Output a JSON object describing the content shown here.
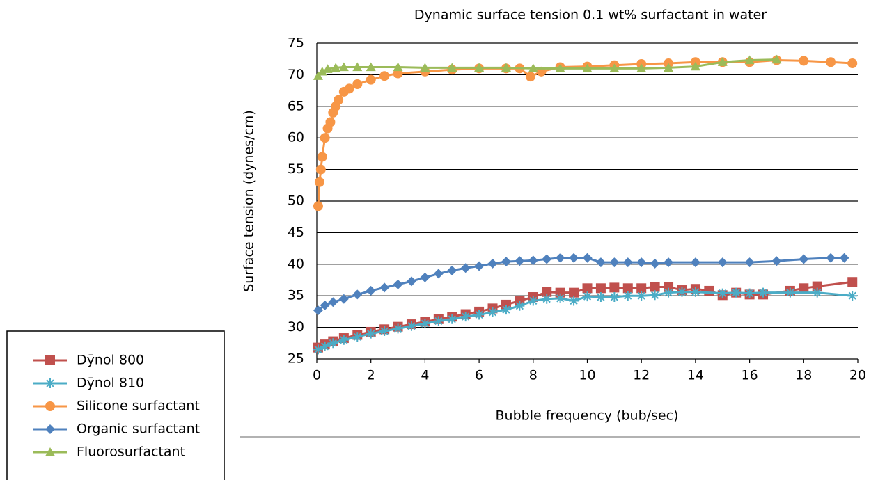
{
  "chart_data": {
    "type": "line",
    "title": "Dynamic surface tension 0.1 wt% surfactant in water",
    "x_label": "Bubble frequency (bub/sec)",
    "y_label": "Surface tension (dynes/cm)",
    "xlim": [
      0,
      20
    ],
    "xticks": [
      0,
      2,
      4,
      6,
      8,
      10,
      12,
      14,
      16,
      18,
      20
    ],
    "ylim": [
      25,
      75
    ],
    "yticks": [
      25,
      30,
      35,
      40,
      45,
      50,
      55,
      60,
      65,
      70,
      75
    ],
    "grid": true,
    "legend": "bottom-left",
    "series": [
      {
        "name": "Dȳnol 800",
        "color": "#c0504d",
        "marker": "square",
        "x": [
          0.05,
          0.3,
          0.6,
          1.0,
          1.5,
          2,
          2.5,
          3,
          3.5,
          4,
          4.5,
          5,
          5.5,
          6,
          6.5,
          7,
          7.5,
          8,
          8.5,
          9,
          9.5,
          10,
          10.5,
          11,
          11.5,
          12,
          12.5,
          13,
          13.5,
          14,
          14.5,
          15,
          15.5,
          16,
          16.5,
          17.5,
          18,
          18.5,
          19.8
        ],
        "values": [
          26.8,
          27.3,
          27.8,
          28.3,
          28.8,
          29.3,
          29.7,
          30.1,
          30.5,
          30.9,
          31.3,
          31.7,
          32.1,
          32.5,
          33.0,
          33.6,
          34.2,
          34.8,
          35.6,
          35.5,
          35.5,
          36.2,
          36.2,
          36.3,
          36.2,
          36.2,
          36.4,
          36.4,
          35.9,
          36.1,
          35.8,
          35.1,
          35.5,
          35.2,
          35.2,
          35.8,
          36.2,
          36.5,
          37.2
        ]
      },
      {
        "name": "Dȳnol 810",
        "color": "#4bacc6",
        "marker": "asterisk",
        "x": [
          0.05,
          0.3,
          0.6,
          1.0,
          1.5,
          2,
          2.5,
          3,
          3.5,
          4,
          4.5,
          5,
          5.5,
          6,
          6.5,
          7,
          7.5,
          8,
          8.5,
          9,
          9.5,
          10,
          10.5,
          11,
          11.5,
          12,
          12.5,
          13,
          13.5,
          14,
          15,
          15.5,
          16,
          16.5,
          17.5,
          18.5,
          19.8
        ],
        "values": [
          26.5,
          27.0,
          27.5,
          28.0,
          28.5,
          29.0,
          29.4,
          29.8,
          30.2,
          30.6,
          31.0,
          31.3,
          31.7,
          32.0,
          32.4,
          32.8,
          33.4,
          34.2,
          34.5,
          34.6,
          34.2,
          34.9,
          34.8,
          34.8,
          35.0,
          35.0,
          35.1,
          35.5,
          35.6,
          35.6,
          35.4,
          35.5,
          35.4,
          35.5,
          35.5,
          35.5,
          35.0
        ]
      },
      {
        "name": "Silicone surfactant",
        "color": "#f79646",
        "marker": "circle",
        "x": [
          0.05,
          0.1,
          0.15,
          0.2,
          0.3,
          0.4,
          0.5,
          0.6,
          0.7,
          0.8,
          1.0,
          1.2,
          1.5,
          2,
          2.5,
          3,
          4,
          5,
          6,
          7,
          7.5,
          7.9,
          8.3,
          9,
          10,
          11,
          12,
          13,
          14,
          15,
          16,
          17,
          18,
          19,
          19.8
        ],
        "values": [
          49.2,
          53,
          55,
          57,
          60,
          61.5,
          62.5,
          64,
          65,
          66,
          67.3,
          67.8,
          68.5,
          69.2,
          69.8,
          70.2,
          70.5,
          70.8,
          71,
          71,
          71,
          69.7,
          70.5,
          71.2,
          71.3,
          71.5,
          71.7,
          71.8,
          72,
          72,
          72,
          72.3,
          72.2,
          72,
          71.8
        ]
      },
      {
        "name": "Organic surfactant",
        "color": "#4f81bd",
        "marker": "diamond",
        "x": [
          0.05,
          0.3,
          0.6,
          1,
          1.5,
          2,
          2.5,
          3,
          3.5,
          4,
          4.5,
          5,
          5.5,
          6,
          6.5,
          7,
          7.5,
          8,
          8.5,
          9,
          9.5,
          10,
          10.5,
          11,
          11.5,
          12,
          12.5,
          13,
          14,
          15,
          16,
          17,
          18,
          19,
          19.5
        ],
        "values": [
          32.7,
          33.5,
          34,
          34.5,
          35.2,
          35.8,
          36.3,
          36.8,
          37.3,
          37.9,
          38.5,
          39,
          39.4,
          39.7,
          40.1,
          40.4,
          40.5,
          40.6,
          40.8,
          41,
          41,
          41,
          40.3,
          40.3,
          40.3,
          40.3,
          40.1,
          40.3,
          40.3,
          40.3,
          40.3,
          40.5,
          40.8,
          41,
          41
        ]
      },
      {
        "name": "Fluorosurfactant",
        "color": "#9bbb59",
        "marker": "triangle",
        "x": [
          0.05,
          0.2,
          0.4,
          0.7,
          1,
          1.5,
          2,
          3,
          4,
          5,
          6,
          7,
          8,
          9,
          10,
          11,
          12,
          13,
          14,
          15,
          16,
          17
        ],
        "values": [
          69.8,
          70.5,
          70.9,
          71.1,
          71.2,
          71.2,
          71.2,
          71.2,
          71.1,
          71.1,
          71.1,
          71.1,
          71,
          71,
          71,
          71,
          71,
          71.1,
          71.3,
          72,
          72.3,
          72.4
        ]
      }
    ]
  }
}
